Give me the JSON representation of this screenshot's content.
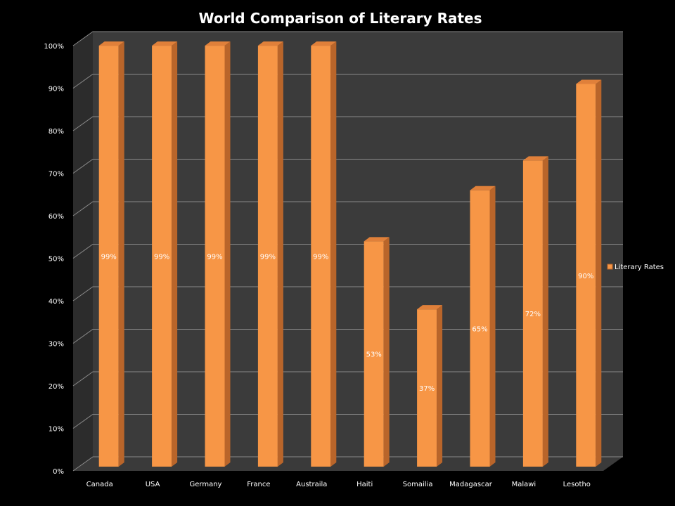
{
  "chart_data": {
    "type": "bar",
    "title": "World Comparison of Literary Rates",
    "categories": [
      "Canada",
      "USA",
      "Germany",
      "France",
      "Austraila",
      "Haiti",
      "Somailia",
      "Madagascar",
      "Malawi",
      "Lesotho"
    ],
    "series": [
      {
        "name": "Literary Rates",
        "values": [
          99,
          99,
          99,
          99,
          99,
          53,
          37,
          65,
          72,
          90
        ],
        "value_labels": [
          "99%",
          "99%",
          "99%",
          "99%",
          "99%",
          "53%",
          "37%",
          "65%",
          "72%",
          "90%"
        ]
      }
    ],
    "yticks": [
      "0%",
      "10%",
      "20%",
      "30%",
      "40%",
      "50%",
      "60%",
      "70%",
      "80%",
      "90%",
      "100%"
    ],
    "ylim": [
      0,
      100
    ],
    "grid": true,
    "legend_position": "right",
    "three_d": true,
    "colors": {
      "background": "#000000",
      "plot_wall": "#3b3b3b",
      "side_wall": "#2c2c2c",
      "floor": "#3a3a3a",
      "gridline": "#8a8a8a",
      "bar_front": "#f79646",
      "bar_side": "#b9652a",
      "bar_top": "#e0803a",
      "text": "#ffffff"
    }
  }
}
